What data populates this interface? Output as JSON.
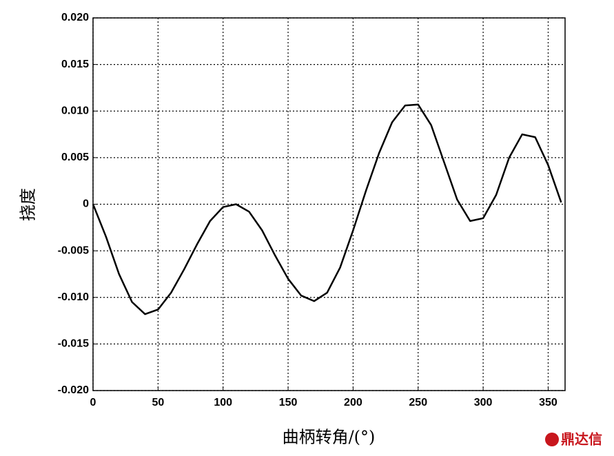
{
  "chart_data": {
    "type": "line",
    "xlabel": "曲柄转角/(°)",
    "ylabel": "挠度",
    "watermark": "鼎达信",
    "x": [
      0,
      10,
      20,
      30,
      40,
      50,
      60,
      70,
      80,
      90,
      100,
      110,
      120,
      130,
      140,
      150,
      160,
      170,
      180,
      190,
      200,
      210,
      220,
      230,
      240,
      250,
      260,
      270,
      280,
      290,
      300,
      310,
      320,
      330,
      340,
      350,
      360
    ],
    "series": [
      {
        "color": "#000000",
        "values": [
          0,
          -0.0035,
          -0.0075,
          -0.0105,
          -0.0118,
          -0.0113,
          -0.0095,
          -0.007,
          -0.0043,
          -0.0018,
          -0.0003,
          0,
          -0.0008,
          -0.0028,
          -0.0055,
          -0.008,
          -0.0098,
          -0.0104,
          -0.0095,
          -0.0068,
          -0.0028,
          0.0015,
          0.0055,
          0.0088,
          0.0106,
          0.0107,
          0.0085,
          0.0045,
          0.0005,
          -0.0018,
          -0.0015,
          0.001,
          0.005,
          0.0075,
          0.0072,
          0.0042,
          0.0002
        ]
      }
    ],
    "xlim": [
      0,
      363
    ],
    "ylim": [
      -0.02,
      0.02
    ],
    "xticks": [
      0,
      50,
      100,
      150,
      200,
      250,
      300,
      350
    ],
    "yticks": [
      {
        "value": 0.02,
        "label": "0.020"
      },
      0.015,
      {
        "value": 0.01,
        "label": "0.010"
      },
      0.005,
      0,
      -0.005,
      {
        "value": -0.01,
        "label": "-0.010"
      },
      -0.015,
      {
        "value": -0.02,
        "label": "-0.020"
      }
    ],
    "grid": true
  }
}
